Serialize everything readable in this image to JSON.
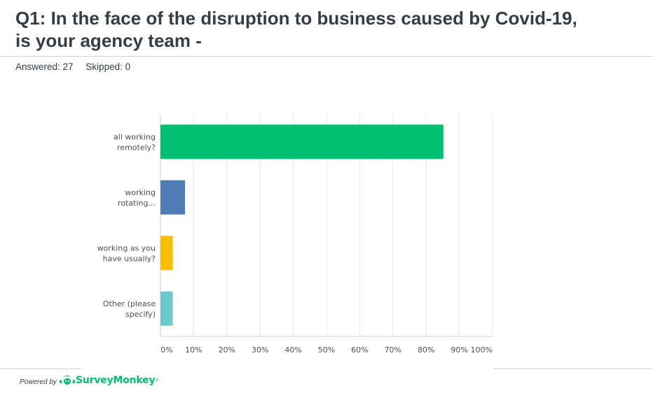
{
  "question": {
    "title_line1": "Q1: In the face of the disruption to business caused by Covid-19,",
    "title_line2": "is your agency team -",
    "answered": "Answered: 27",
    "skipped": "Skipped: 0"
  },
  "footer": {
    "powered_by": "Powered by",
    "brand": "SurveyMonkey",
    "brand_tm": "®",
    "logo_icon": "surveymonkey-logo-icon"
  },
  "colors": {
    "bar_1": "#00bf6f",
    "bar_2": "#507cb6",
    "bar_3": "#f9be00",
    "bar_4": "#6bc8cd",
    "grid": "#e6e7e8",
    "axis": "#cfd1d2"
  },
  "chart_data": {
    "type": "bar",
    "orientation": "horizontal",
    "categories": [
      [
        "all working",
        "remotely?"
      ],
      [
        "working",
        "rotating..."
      ],
      [
        "working as you",
        "have usually?"
      ],
      [
        "Other (please",
        "specify)"
      ]
    ],
    "values": [
      85.19,
      7.41,
      3.7,
      3.7
    ],
    "xlim": [
      0,
      100
    ],
    "xticks": [
      "0%",
      "10%",
      "20%",
      "30%",
      "40%",
      "50%",
      "60%",
      "70%",
      "80%",
      "90%",
      "100%"
    ],
    "grid": true
  }
}
